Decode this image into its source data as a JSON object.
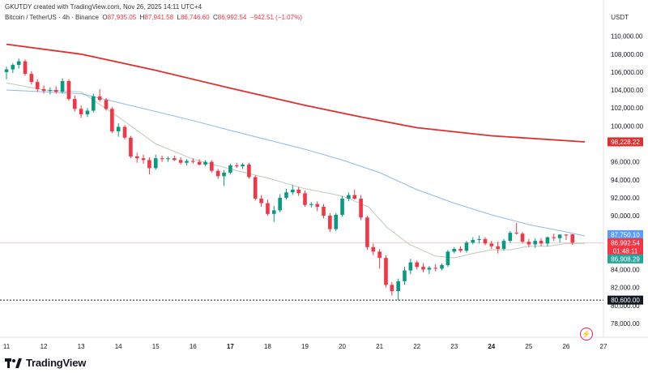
{
  "header": {
    "created_by": "GKUTDY created with TradingView.com, Nov 26, 2025 14:11 UTC+4"
  },
  "symbol": {
    "name": "Bitcoin / TetherUS · 4h · Binance",
    "o_label": "O",
    "o_value": "87,935.05",
    "h_label": "H",
    "h_value": "87,941.58",
    "l_label": "L",
    "l_value": "86,746.60",
    "c_label": "C",
    "c_value": "86,992.54",
    "change": "−942.51 (−1.07%)"
  },
  "currency": "USDT",
  "footer": {
    "brand": "TradingView"
  },
  "colors": {
    "up": "#089981",
    "down": "#f23645",
    "ma_long": "#e0302e",
    "ma_mid": "#90b8ea",
    "ma_short": "#b9cdb8"
  },
  "chart_data": {
    "type": "candlestick",
    "ylim": [
      77000,
      111500
    ],
    "y_ticks": [
      {
        "v": 110000,
        "label": "110,000.00"
      },
      {
        "v": 108000,
        "label": "108,000.00"
      },
      {
        "v": 106000,
        "label": "106,000.00"
      },
      {
        "v": 104000,
        "label": "104,000.00"
      },
      {
        "v": 102000,
        "label": "102,000.00"
      },
      {
        "v": 100000,
        "label": "100,000.00"
      },
      {
        "v": 98000,
        "label": "98,000.00"
      },
      {
        "v": 96000,
        "label": "96,000.00"
      },
      {
        "v": 94000,
        "label": "94,000.00"
      },
      {
        "v": 92000,
        "label": "92,000.00"
      },
      {
        "v": 90000,
        "label": "90,000.00"
      },
      {
        "v": 88000,
        "label": "88,000.00"
      },
      {
        "v": 86000,
        "label": "86,000.00"
      },
      {
        "v": 84000,
        "label": "84,000.00"
      },
      {
        "v": 82000,
        "label": "82,000.00"
      },
      {
        "v": 80000,
        "label": "80,000.00"
      },
      {
        "v": 78000,
        "label": "78,000.00"
      }
    ],
    "x_ticks": [
      {
        "x": 11,
        "label": "11",
        "bold": false
      },
      {
        "x": 12,
        "label": "12",
        "bold": false
      },
      {
        "x": 13,
        "label": "13",
        "bold": false
      },
      {
        "x": 14,
        "label": "14",
        "bold": false
      },
      {
        "x": 15,
        "label": "15",
        "bold": false
      },
      {
        "x": 16,
        "label": "16",
        "bold": false
      },
      {
        "x": 17,
        "label": "17",
        "bold": true
      },
      {
        "x": 18,
        "label": "18",
        "bold": false
      },
      {
        "x": 19,
        "label": "19",
        "bold": false
      },
      {
        "x": 20,
        "label": "20",
        "bold": false
      },
      {
        "x": 21,
        "label": "21",
        "bold": false
      },
      {
        "x": 22,
        "label": "22",
        "bold": false
      },
      {
        "x": 23,
        "label": "23",
        "bold": false
      },
      {
        "x": 24,
        "label": "24",
        "bold": true
      },
      {
        "x": 25,
        "label": "25",
        "bold": false
      },
      {
        "x": 26,
        "label": "26",
        "bold": false
      },
      {
        "x": 27,
        "label": "27",
        "bold": false
      }
    ],
    "xlim": [
      11,
      27
    ],
    "candles": [
      [
        11.0,
        106000,
        106600,
        105200,
        106300
      ],
      [
        11.17,
        106300,
        107000,
        105900,
        106800
      ],
      [
        11.33,
        106800,
        107500,
        106400,
        107200
      ],
      [
        11.5,
        107200,
        107400,
        105600,
        105800
      ],
      [
        11.67,
        105800,
        106100,
        104600,
        104900
      ],
      [
        11.83,
        104900,
        105200,
        103800,
        104100
      ],
      [
        12.0,
        104100,
        104500,
        103600,
        103900
      ],
      [
        12.17,
        103900,
        104300,
        103500,
        104000
      ],
      [
        12.33,
        104000,
        104400,
        103600,
        103800
      ],
      [
        12.5,
        103800,
        105300,
        103600,
        105000
      ],
      [
        12.67,
        105000,
        105200,
        102800,
        103000
      ],
      [
        12.83,
        103000,
        103400,
        101600,
        101900
      ],
      [
        13.0,
        101900,
        102300,
        100900,
        101300
      ],
      [
        13.17,
        101300,
        102000,
        101000,
        101700
      ],
      [
        13.33,
        101700,
        103600,
        101500,
        103300
      ],
      [
        13.5,
        103300,
        104100,
        102700,
        102900
      ],
      [
        13.67,
        102900,
        103100,
        101700,
        101900
      ],
      [
        13.83,
        101900,
        102100,
        99200,
        99400
      ],
      [
        14.0,
        99400,
        100300,
        98800,
        99900
      ],
      [
        14.17,
        99900,
        100100,
        98500,
        98700
      ],
      [
        14.33,
        98700,
        98900,
        96400,
        96600
      ],
      [
        14.5,
        96600,
        97000,
        95900,
        96400
      ],
      [
        14.67,
        96400,
        96800,
        95800,
        96200
      ],
      [
        14.83,
        96200,
        96500,
        94600,
        95300
      ],
      [
        15.0,
        95300,
        96800,
        95100,
        96400
      ],
      [
        15.17,
        96400,
        96700,
        96000,
        96300
      ],
      [
        15.33,
        96300,
        96600,
        96000,
        96400
      ],
      [
        15.5,
        96400,
        96700,
        96100,
        96200
      ],
      [
        15.67,
        96200,
        96500,
        95700,
        95900
      ],
      [
        15.83,
        95900,
        96300,
        95600,
        96100
      ],
      [
        16.0,
        96100,
        96400,
        95800,
        96000
      ],
      [
        16.17,
        96000,
        96300,
        95600,
        95700
      ],
      [
        16.33,
        95700,
        96200,
        95500,
        96000
      ],
      [
        16.5,
        96000,
        96200,
        94800,
        95000
      ],
      [
        16.67,
        95000,
        95200,
        94100,
        94400
      ],
      [
        16.83,
        94400,
        95100,
        93300,
        94800
      ],
      [
        17.0,
        94800,
        95800,
        94600,
        95600
      ],
      [
        17.17,
        95600,
        95900,
        95300,
        95500
      ],
      [
        17.33,
        95500,
        95900,
        95200,
        95700
      ],
      [
        17.5,
        95700,
        95900,
        94100,
        94300
      ],
      [
        17.67,
        94300,
        94500,
        91700,
        91900
      ],
      [
        17.83,
        91900,
        92300,
        91000,
        91400
      ],
      [
        18.0,
        91400,
        91800,
        90000,
        90200
      ],
      [
        18.17,
        90200,
        91100,
        89300,
        90600
      ],
      [
        18.33,
        90600,
        92400,
        90400,
        92000
      ],
      [
        18.5,
        92000,
        93000,
        91800,
        92600
      ],
      [
        18.67,
        92600,
        93400,
        92300,
        92900
      ],
      [
        18.83,
        92900,
        93200,
        92200,
        92500
      ],
      [
        19.0,
        92500,
        92800,
        91000,
        91200
      ],
      [
        19.17,
        91200,
        91500,
        90900,
        91300
      ],
      [
        19.33,
        91300,
        91600,
        90500,
        91000
      ],
      [
        19.5,
        91000,
        91300,
        89700,
        90000
      ],
      [
        19.67,
        90000,
        90300,
        88200,
        88500
      ],
      [
        19.83,
        88500,
        90300,
        88300,
        90100
      ],
      [
        20.0,
        90100,
        92200,
        89900,
        91900
      ],
      [
        20.17,
        91900,
        92600,
        91600,
        92300
      ],
      [
        20.33,
        92300,
        92900,
        91800,
        91900
      ],
      [
        20.5,
        91900,
        92300,
        89500,
        89800
      ],
      [
        20.67,
        89800,
        90000,
        86200,
        86500
      ],
      [
        20.83,
        86500,
        86900,
        85600,
        86000
      ],
      [
        21.0,
        86000,
        86300,
        84100,
        85300
      ],
      [
        21.17,
        85300,
        85600,
        82000,
        82300
      ],
      [
        21.33,
        82300,
        82600,
        81100,
        81600
      ],
      [
        21.5,
        81600,
        83000,
        80600,
        82700
      ],
      [
        21.67,
        82700,
        84300,
        82300,
        83900
      ],
      [
        21.83,
        83900,
        85200,
        83500,
        84800
      ],
      [
        22.0,
        84800,
        85000,
        84000,
        84300
      ],
      [
        22.17,
        84300,
        84700,
        83700,
        84000
      ],
      [
        22.33,
        84000,
        84400,
        83500,
        84200
      ],
      [
        22.5,
        84200,
        84600,
        83800,
        84100
      ],
      [
        22.67,
        84100,
        84700,
        83900,
        84500
      ],
      [
        22.83,
        84500,
        86200,
        84300,
        86000
      ],
      [
        23.0,
        86000,
        86500,
        85800,
        86300
      ],
      [
        23.17,
        86300,
        86600,
        85900,
        86100
      ],
      [
        23.33,
        86100,
        87200,
        85900,
        87000
      ],
      [
        23.5,
        87000,
        87600,
        86800,
        87300
      ],
      [
        23.67,
        87300,
        87800,
        86900,
        87400
      ],
      [
        23.83,
        87400,
        87600,
        86700,
        86900
      ],
      [
        24.0,
        86900,
        87200,
        86300,
        86600
      ],
      [
        24.17,
        86600,
        87100,
        85800,
        86300
      ],
      [
        24.33,
        86300,
        87400,
        86100,
        87200
      ],
      [
        24.5,
        87200,
        88300,
        87000,
        88100
      ],
      [
        24.67,
        88100,
        89200,
        87900,
        88000
      ],
      [
        24.83,
        88000,
        88200,
        86900,
        87100
      ],
      [
        25.0,
        87100,
        87400,
        86500,
        86800
      ],
      [
        25.17,
        86800,
        87500,
        86400,
        87200
      ],
      [
        25.33,
        87200,
        87500,
        86600,
        86900
      ],
      [
        25.5,
        86900,
        87700,
        86600,
        87600
      ],
      [
        25.67,
        87600,
        88000,
        87200,
        87500
      ],
      [
        25.83,
        87500,
        87900,
        87000,
        87900
      ],
      [
        26.0,
        87900,
        87950,
        87300,
        87800
      ],
      [
        26.17,
        87935,
        87942,
        86747,
        86993
      ]
    ],
    "ma_long": [
      [
        11,
        109100
      ],
      [
        13,
        108000
      ],
      [
        15,
        106200
      ],
      [
        17,
        104200
      ],
      [
        19,
        102300
      ],
      [
        20.5,
        101000
      ],
      [
        22,
        99800
      ],
      [
        24,
        98900
      ],
      [
        26.5,
        98228
      ]
    ],
    "ma_mid": [
      [
        11,
        104000
      ],
      [
        13,
        103600
      ],
      [
        14,
        102600
      ],
      [
        16,
        100600
      ],
      [
        17,
        99500
      ],
      [
        19,
        97400
      ],
      [
        20,
        96200
      ],
      [
        21,
        94800
      ],
      [
        22,
        92900
      ],
      [
        23,
        91400
      ],
      [
        24,
        90100
      ],
      [
        25,
        89000
      ],
      [
        26,
        88200
      ],
      [
        26.5,
        87750
      ]
    ],
    "ma_short": [
      [
        11,
        104800
      ],
      [
        12,
        104000
      ],
      [
        13,
        103800
      ],
      [
        14,
        101000
      ],
      [
        15,
        98000
      ],
      [
        16,
        96300
      ],
      [
        17,
        95200
      ],
      [
        18,
        94200
      ],
      [
        19,
        93000
      ],
      [
        20,
        92200
      ],
      [
        20.7,
        91000
      ],
      [
        21.2,
        88700
      ],
      [
        21.8,
        86800
      ],
      [
        22.5,
        85500
      ],
      [
        23,
        85300
      ],
      [
        23.5,
        85800
      ],
      [
        24,
        86200
      ],
      [
        24.5,
        86200
      ],
      [
        25,
        86600
      ],
      [
        25.5,
        86600
      ],
      [
        26,
        86900
      ],
      [
        26.5,
        86908
      ]
    ],
    "dotted_level": 80600,
    "price_labels": [
      {
        "v": 98228.22,
        "label": "98,228.22",
        "bg": "#e0302e",
        "fg": "#ffffff"
      },
      {
        "v": 87750.1,
        "label": "87,750.10",
        "bg": "#5b9cf6",
        "fg": "#ffffff"
      },
      {
        "v": 86992.54,
        "label": "86,992.54",
        "bg": "#f23645",
        "fg": "#ffffff"
      },
      {
        "v": 86300,
        "label": "01:48:11",
        "bg": "#f23645",
        "fg": "#ffffff"
      },
      {
        "v": 86908.29,
        "label": "86,908.29",
        "bg": "#26a69a",
        "fg": "#ffffff",
        "offset": 1
      },
      {
        "v": 80600,
        "label": "80,600.00",
        "bg": "#131722",
        "fg": "#ffffff"
      }
    ]
  }
}
